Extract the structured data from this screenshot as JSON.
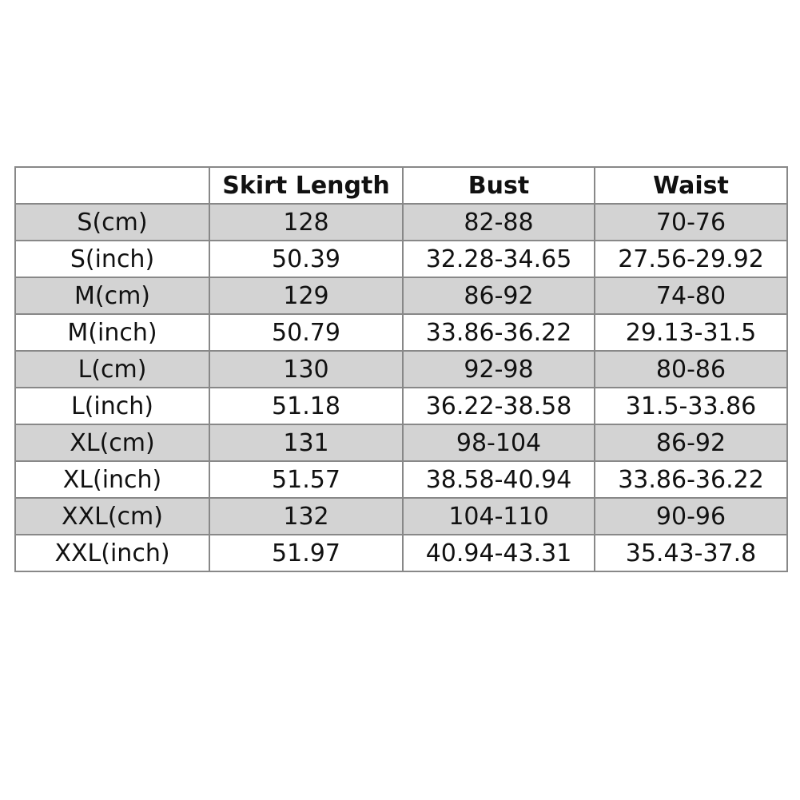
{
  "table": {
    "headers": [
      "",
      "Skirt Length",
      "Bust",
      "Waist"
    ],
    "rows": [
      [
        "S(cm)",
        "128",
        "82-88",
        "70-76"
      ],
      [
        "S(inch)",
        "50.39",
        "32.28-34.65",
        "27.56-29.92"
      ],
      [
        "M(cm)",
        "129",
        "86-92",
        "74-80"
      ],
      [
        "M(inch)",
        "50.79",
        "33.86-36.22",
        "29.13-31.5"
      ],
      [
        "L(cm)",
        "130",
        "92-98",
        "80-86"
      ],
      [
        "L(inch)",
        "51.18",
        "36.22-38.58",
        "31.5-33.86"
      ],
      [
        "XL(cm)",
        "131",
        "98-104",
        "86-92"
      ],
      [
        "XL(inch)",
        "51.57",
        "38.58-40.94",
        "33.86-36.22"
      ],
      [
        "XXL(cm)",
        "132",
        "104-110",
        "90-96"
      ],
      [
        "XXL(inch)",
        "51.97",
        "40.94-43.31",
        "35.43-37.8"
      ]
    ],
    "colors": {
      "alt_row": "#d3d3d3",
      "border": "#888888"
    }
  }
}
